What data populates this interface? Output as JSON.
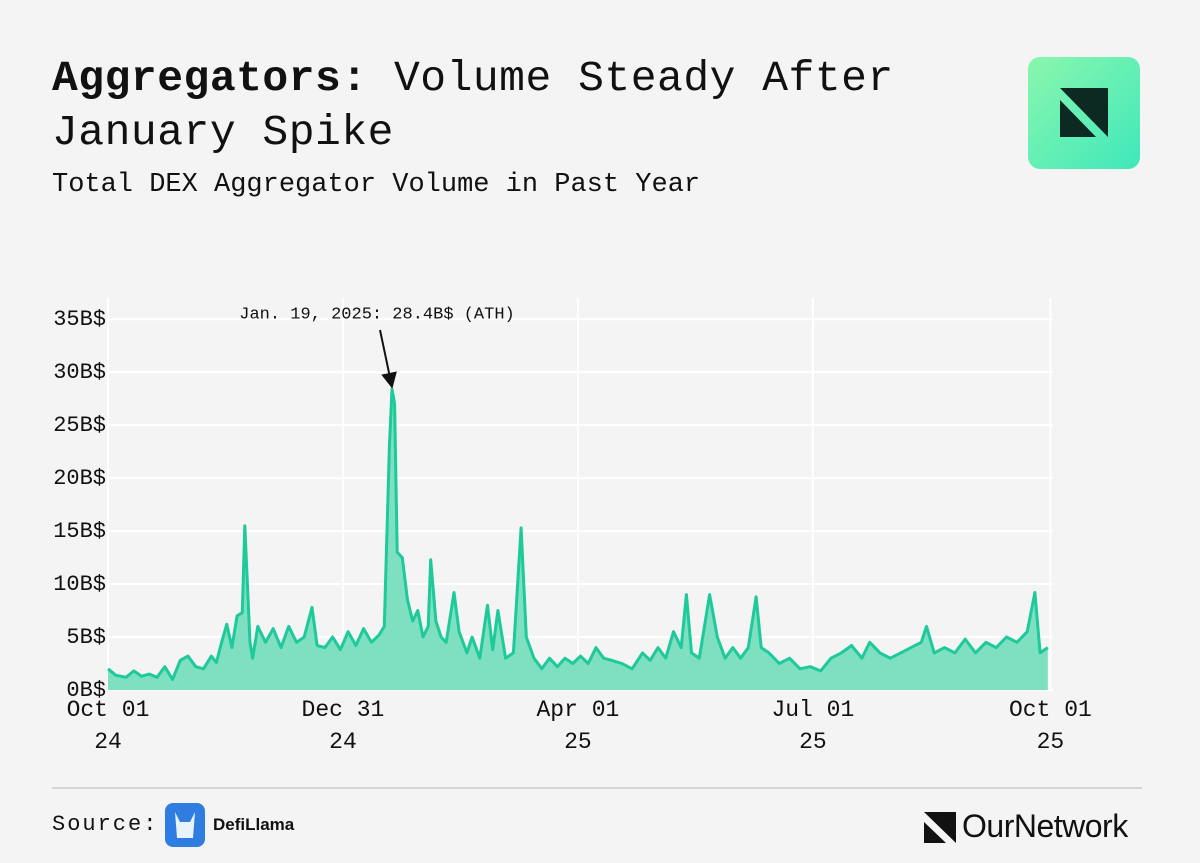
{
  "chart_data": {
    "type": "area",
    "title": [
      "Aggregators:",
      "Volume Steady After January Spike"
    ],
    "subtitle": "Total DEX Aggregator Volume in Past Year",
    "annotation": {
      "text": "Jan. 19, 2025: 28.4B$ (ATH)",
      "x": "2025-01-19",
      "y": 28.4
    },
    "color": "#1ec99a",
    "fill": "#7fdfc1",
    "grid": true,
    "xlim": [
      "2024-10-01",
      "2025-10-02"
    ],
    "xticks": [
      {
        "value": "2024-10-01",
        "label": "Oct 01\n24"
      },
      {
        "value": "2024-12-31",
        "label": "Dec 31\n24"
      },
      {
        "value": "2025-04-01",
        "label": "Apr 01\n25"
      },
      {
        "value": "2025-07-01",
        "label": "Jul 01\n25"
      },
      {
        "value": "2025-10-01",
        "label": "Oct 01\n25"
      }
    ],
    "ylim": [
      0,
      37
    ],
    "yticks": [
      {
        "value": 0,
        "label": "0B$"
      },
      {
        "value": 5,
        "label": "5B$"
      },
      {
        "value": 10,
        "label": "10B$"
      },
      {
        "value": 15,
        "label": "15B$"
      },
      {
        "value": 20,
        "label": "20B$"
      },
      {
        "value": 25,
        "label": "25B$"
      },
      {
        "value": 30,
        "label": "30B$"
      },
      {
        "value": 35,
        "label": "35B$"
      }
    ],
    "x": [
      "2024-10-01",
      "2024-10-04",
      "2024-10-08",
      "2024-10-11",
      "2024-10-14",
      "2024-10-17",
      "2024-10-20",
      "2024-10-23",
      "2024-10-26",
      "2024-10-29",
      "2024-11-01",
      "2024-11-04",
      "2024-11-07",
      "2024-11-10",
      "2024-11-12",
      "2024-11-14",
      "2024-11-16",
      "2024-11-18",
      "2024-11-20",
      "2024-11-22",
      "2024-11-23",
      "2024-11-25",
      "2024-11-26",
      "2024-11-28",
      "2024-12-01",
      "2024-12-04",
      "2024-12-07",
      "2024-12-10",
      "2024-12-13",
      "2024-12-16",
      "2024-12-19",
      "2024-12-21",
      "2024-12-24",
      "2024-12-27",
      "2024-12-30",
      "2025-01-02",
      "2025-01-05",
      "2025-01-08",
      "2025-01-11",
      "2025-01-14",
      "2025-01-16",
      "2025-01-18",
      "2025-01-19",
      "2025-01-20",
      "2025-01-21",
      "2025-01-23",
      "2025-01-25",
      "2025-01-27",
      "2025-01-29",
      "2025-01-31",
      "2025-02-02",
      "2025-02-03",
      "2025-02-05",
      "2025-02-07",
      "2025-02-09",
      "2025-02-12",
      "2025-02-14",
      "2025-02-17",
      "2025-02-19",
      "2025-02-22",
      "2025-02-25",
      "2025-02-27",
      "2025-03-01",
      "2025-03-04",
      "2025-03-07",
      "2025-03-10",
      "2025-03-12",
      "2025-03-15",
      "2025-03-18",
      "2025-03-21",
      "2025-03-24",
      "2025-03-27",
      "2025-03-30",
      "2025-04-02",
      "2025-04-05",
      "2025-04-08",
      "2025-04-11",
      "2025-04-14",
      "2025-04-18",
      "2025-04-22",
      "2025-04-26",
      "2025-04-29",
      "2025-05-02",
      "2025-05-05",
      "2025-05-08",
      "2025-05-11",
      "2025-05-13",
      "2025-05-15",
      "2025-05-18",
      "2025-05-22",
      "2025-05-25",
      "2025-05-28",
      "2025-05-31",
      "2025-06-03",
      "2025-06-06",
      "2025-06-09",
      "2025-06-11",
      "2025-06-14",
      "2025-06-18",
      "2025-06-22",
      "2025-06-26",
      "2025-06-30",
      "2025-07-04",
      "2025-07-08",
      "2025-07-12",
      "2025-07-16",
      "2025-07-20",
      "2025-07-23",
      "2025-07-27",
      "2025-07-31",
      "2025-08-04",
      "2025-08-08",
      "2025-08-12",
      "2025-08-14",
      "2025-08-17",
      "2025-08-21",
      "2025-08-25",
      "2025-08-29",
      "2025-09-02",
      "2025-09-06",
      "2025-09-10",
      "2025-09-14",
      "2025-09-18",
      "2025-09-22",
      "2025-09-25",
      "2025-09-27",
      "2025-09-30"
    ],
    "values": [
      2.0,
      1.4,
      1.2,
      1.8,
      1.3,
      1.5,
      1.2,
      2.2,
      1.0,
      2.8,
      3.2,
      2.2,
      2.0,
      3.2,
      2.6,
      4.5,
      6.2,
      4.0,
      7.0,
      7.3,
      15.5,
      4.5,
      3.0,
      6.0,
      4.5,
      5.8,
      4.0,
      6.0,
      4.5,
      5.0,
      7.8,
      4.2,
      4.0,
      5.0,
      3.8,
      5.5,
      4.2,
      5.8,
      4.5,
      5.2,
      6.0,
      23.0,
      28.4,
      27.0,
      13.0,
      12.5,
      8.5,
      6.5,
      7.5,
      5.0,
      6.0,
      12.3,
      6.5,
      5.0,
      4.5,
      9.2,
      5.5,
      3.5,
      5.0,
      3.0,
      8.0,
      3.8,
      7.5,
      3.0,
      3.5,
      15.3,
      5.0,
      3.0,
      2.0,
      3.0,
      2.2,
      3.0,
      2.5,
      3.2,
      2.5,
      4.0,
      3.0,
      2.8,
      2.5,
      2.0,
      3.5,
      2.8,
      4.0,
      3.0,
      5.5,
      4.0,
      9.0,
      3.5,
      3.0,
      9.0,
      5.0,
      3.0,
      4.0,
      3.0,
      4.0,
      8.8,
      4.0,
      3.5,
      2.5,
      3.0,
      2.0,
      2.2,
      1.8,
      3.0,
      3.5,
      4.2,
      3.0,
      4.5,
      3.5,
      3.0,
      3.5,
      4.0,
      4.5,
      6.0,
      3.5,
      4.0,
      3.5,
      4.8,
      3.5,
      4.5,
      4.0,
      5.0,
      4.5,
      5.5,
      9.2,
      3.5,
      4.0
    ]
  },
  "footer": {
    "source_label": "Source:",
    "source_name": "DefiLlama",
    "brand": "OurNetwork"
  }
}
